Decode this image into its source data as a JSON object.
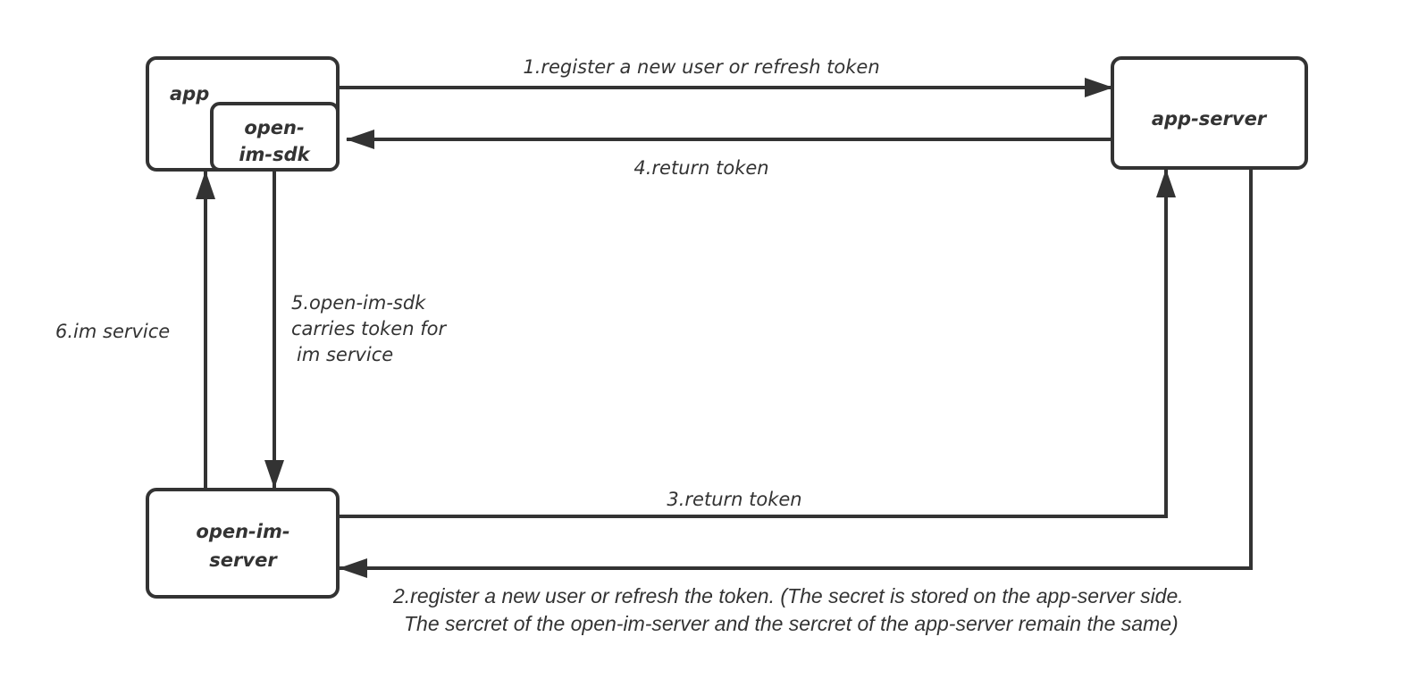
{
  "nodes": {
    "app": "app",
    "open_im_sdk": [
      "open-",
      "im-sdk"
    ],
    "app_server": "app-server",
    "open_im_server": [
      "open-im-",
      "server"
    ]
  },
  "edges": {
    "e1": "1.register a new user or refresh token",
    "e2": [
      "2.register a new user or refresh the token. (The secret is stored on the app-server side.",
      "The sercret of the open-im-server and the sercret of the app-server remain the same)"
    ],
    "e3": "3.return token",
    "e4": "4.return token",
    "e5": [
      "5.open-im-sdk",
      "carries token for",
      "im service"
    ],
    "e6": "6.im service"
  },
  "colors": {
    "stroke": "#333333",
    "background": "#ffffff"
  }
}
